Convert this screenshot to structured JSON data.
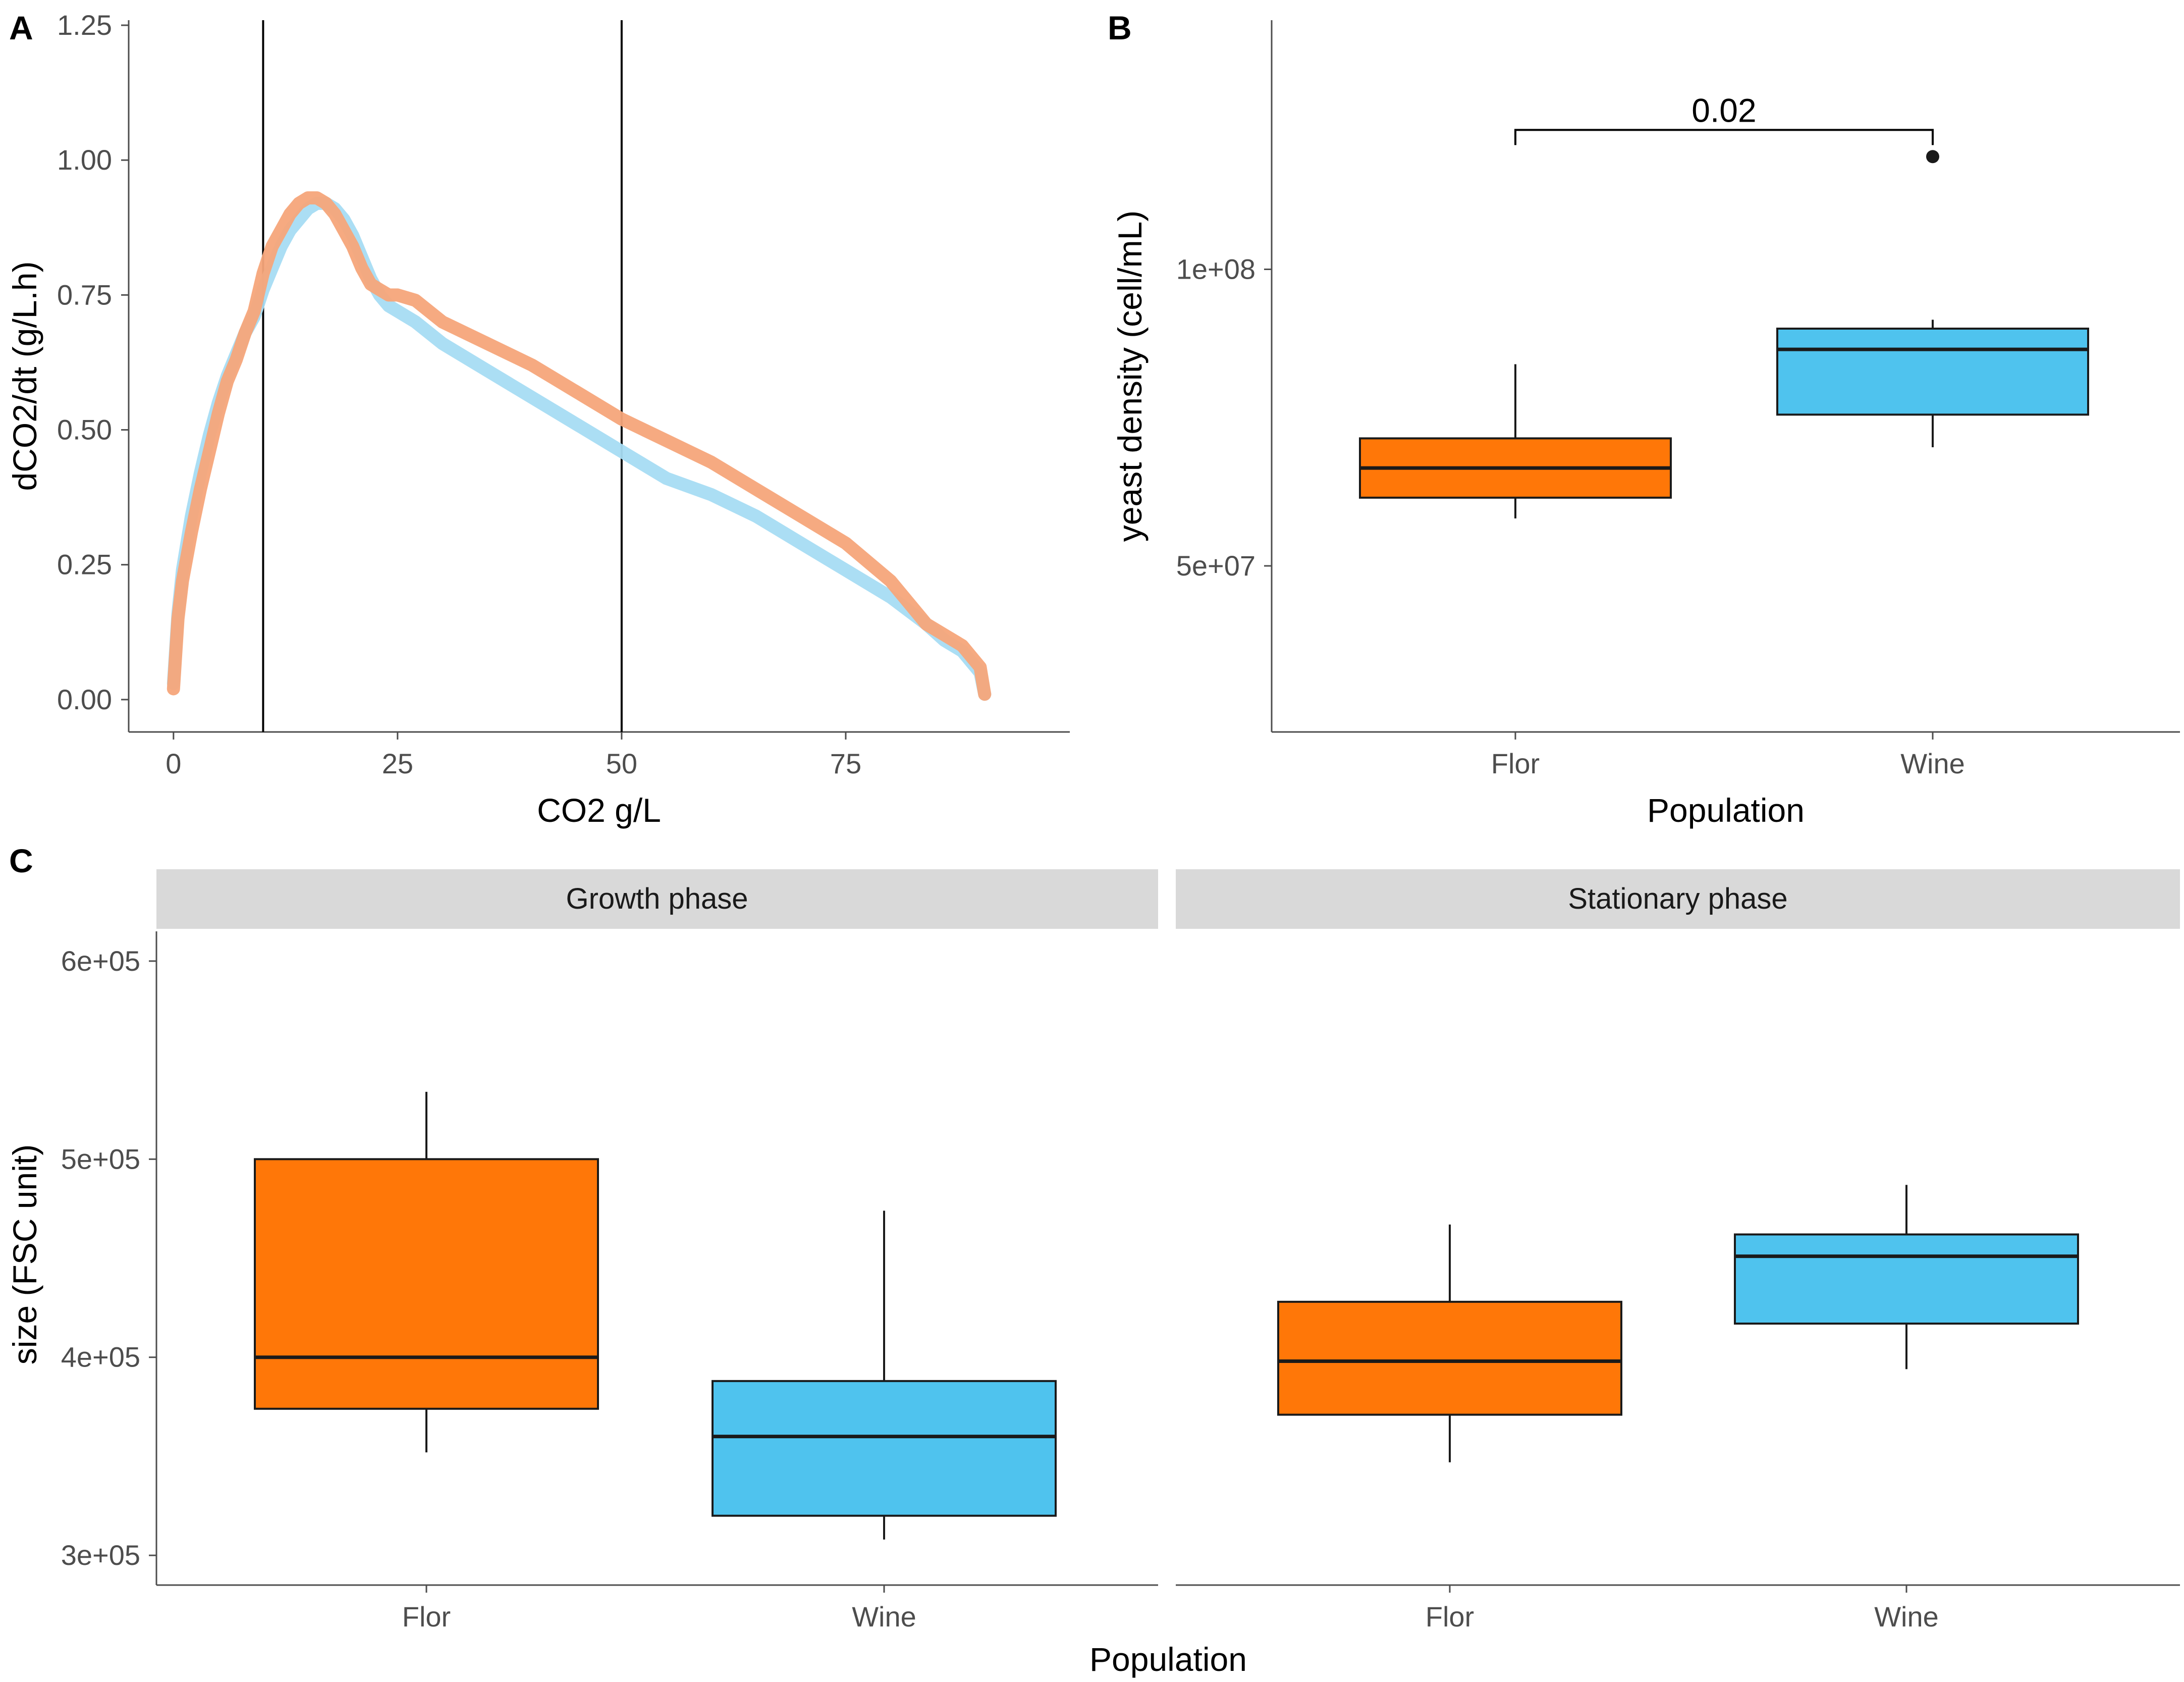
{
  "colors": {
    "flor": "#ff7708",
    "wine": "#4fc3ee",
    "flor_curve": "#f6a57a",
    "wine_curve": "#a7dcf3"
  },
  "panels": {
    "a": "A",
    "b": "B",
    "c": "C"
  },
  "chart_data": [
    {
      "panel": "A",
      "type": "line",
      "title": "",
      "xlabel": "CO2 g/L",
      "ylabel": "dCO2/dt (g/L.h)",
      "xlim": [
        -5,
        100
      ],
      "ylim": [
        -0.06,
        1.25
      ],
      "xticks": [
        "0",
        "25",
        "50",
        "75"
      ],
      "xtick_values": [
        0,
        25,
        50,
        75
      ],
      "yticks": [
        "0.00",
        "0.25",
        "0.50",
        "0.75",
        "1.00",
        "1.25"
      ],
      "ytick_values": [
        0,
        0.25,
        0.5,
        0.75,
        1.0,
        1.25
      ],
      "vlines": [
        10,
        50
      ],
      "series": [
        {
          "name": "Flor",
          "x": [
            0,
            0.5,
            1,
            2,
            3,
            4,
            5,
            6,
            7,
            8,
            9,
            10,
            11,
            12,
            13,
            14,
            15,
            16,
            17,
            18,
            19,
            20,
            21,
            22,
            23,
            24,
            25,
            27,
            30,
            35,
            40,
            45,
            50,
            55,
            60,
            65,
            70,
            75,
            80,
            84,
            86,
            88,
            89,
            90,
            90.5
          ],
          "y": [
            0.02,
            0.15,
            0.22,
            0.31,
            0.39,
            0.46,
            0.53,
            0.59,
            0.63,
            0.68,
            0.72,
            0.79,
            0.84,
            0.87,
            0.9,
            0.92,
            0.93,
            0.93,
            0.92,
            0.9,
            0.87,
            0.84,
            0.8,
            0.77,
            0.76,
            0.75,
            0.75,
            0.74,
            0.7,
            0.66,
            0.62,
            0.57,
            0.52,
            0.48,
            0.44,
            0.39,
            0.34,
            0.29,
            0.22,
            0.14,
            0.12,
            0.1,
            0.08,
            0.06,
            0.01
          ]
        },
        {
          "name": "Wine",
          "x": [
            0,
            0.5,
            1,
            2,
            3,
            4,
            5,
            6,
            7,
            8,
            9,
            10,
            11,
            12,
            13,
            14,
            15,
            16,
            17,
            18,
            19,
            20,
            21,
            22,
            23,
            24,
            25,
            27,
            30,
            35,
            40,
            45,
            50,
            55,
            60,
            65,
            70,
            75,
            80,
            84,
            86,
            88,
            89,
            90,
            90.5
          ],
          "y": [
            0.03,
            0.16,
            0.24,
            0.34,
            0.42,
            0.49,
            0.55,
            0.6,
            0.64,
            0.68,
            0.71,
            0.76,
            0.8,
            0.84,
            0.87,
            0.89,
            0.91,
            0.92,
            0.92,
            0.91,
            0.89,
            0.86,
            0.82,
            0.78,
            0.75,
            0.73,
            0.72,
            0.7,
            0.66,
            0.61,
            0.56,
            0.51,
            0.46,
            0.41,
            0.38,
            0.34,
            0.29,
            0.24,
            0.19,
            0.14,
            0.11,
            0.09,
            0.07,
            0.05,
            0.01
          ]
        }
      ]
    },
    {
      "panel": "B",
      "type": "box",
      "title": "",
      "xlabel": "Population",
      "ylabel": "yeast density (cell/mL)",
      "categories": [
        "Flor",
        "Wine"
      ],
      "ylim": [
        22000000,
        142000000
      ],
      "yticks": [
        "5e+07",
        "1e+08"
      ],
      "ytick_values": [
        50000000,
        100000000
      ],
      "boxes": [
        {
          "name": "Flor",
          "min": 58000000,
          "q1": 61500000,
          "median": 66500000,
          "q3": 71500000,
          "max": 84000000
        },
        {
          "name": "Wine",
          "min": 70000000,
          "q1": 75500000,
          "median": 86500000,
          "q3": 90000000,
          "max": 91500000,
          "outliers": [
            119000000
          ]
        }
      ],
      "significance": {
        "label": "0.02",
        "y": 123500000
      }
    },
    {
      "panel": "C",
      "type": "box",
      "title": "",
      "xlabel": "Population",
      "ylabel": "size (FSC unit)",
      "facets": [
        "Growth phase",
        "Stationary phase"
      ],
      "categories": [
        "Flor",
        "Wine"
      ],
      "ylim": [
        285000,
        615000
      ],
      "yticks": [
        "3e+05",
        "4e+05",
        "5e+05",
        "6e+05"
      ],
      "ytick_values": [
        300000,
        400000,
        500000,
        600000
      ],
      "boxes": {
        "Growth phase": [
          {
            "name": "Flor",
            "min": 352000,
            "q1": 374000,
            "median": 400000,
            "q3": 500000,
            "max": 534000
          },
          {
            "name": "Wine",
            "min": 308000,
            "q1": 320000,
            "median": 360000,
            "q3": 388000,
            "max": 474000
          }
        ],
        "Stationary phase": [
          {
            "name": "Flor",
            "min": 347000,
            "q1": 371000,
            "median": 398000,
            "q3": 428000,
            "max": 467000
          },
          {
            "name": "Wine",
            "min": 394000,
            "q1": 417000,
            "median": 451000,
            "q3": 462000,
            "max": 487000
          }
        ]
      }
    }
  ]
}
